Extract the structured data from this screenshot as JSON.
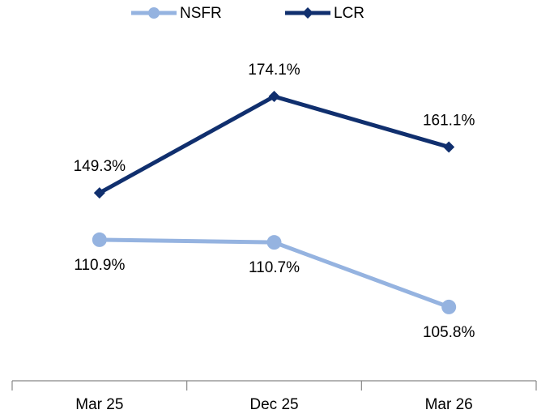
{
  "chart_data": {
    "type": "line",
    "categories": [
      "Mar 25",
      "Dec 25",
      "Mar 26"
    ],
    "series": [
      {
        "name": "NSFR",
        "color": "#95b3e0",
        "values": [
          110.9,
          110.7,
          105.8
        ],
        "value_labels": [
          "110.9%",
          "110.7%",
          "105.8%"
        ],
        "axis": "y2"
      },
      {
        "name": "LCR",
        "color": "#102f6e",
        "values": [
          149.3,
          174.1,
          161.1
        ],
        "value_labels": [
          "149.3%",
          "174.1%",
          "161.1%"
        ]
      }
    ],
    "ylim": [
      101,
      186.4
    ],
    "y2lim": [
      100.2,
      125.4
    ],
    "legend": "top"
  }
}
